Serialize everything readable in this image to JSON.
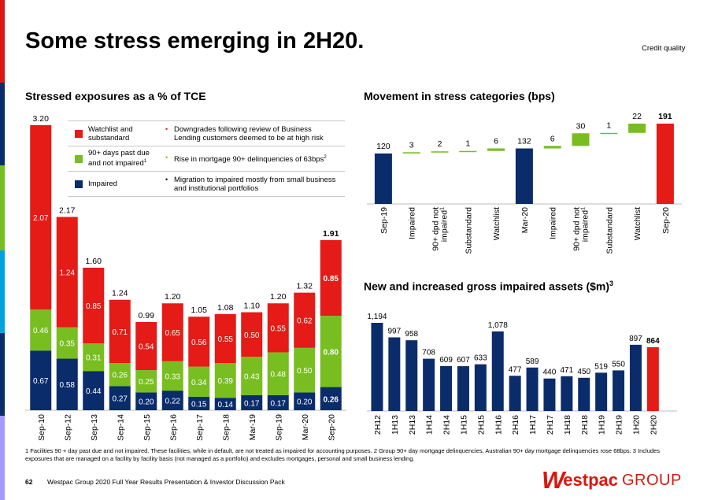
{
  "header": {
    "title": "Some stress emerging in 2H20.",
    "tag": "Credit quality"
  },
  "colors": {
    "red": "#e41b17",
    "green": "#78be20",
    "navy": "#0a2c6b",
    "edge": [
      "#da1710",
      "#0a2c6b",
      "#78be20",
      "#00a3e0",
      "#0a2c6b",
      "#a39aff"
    ]
  },
  "legend": [
    {
      "label_lines": [
        "Watchlist and",
        "substandard"
      ],
      "desc_lines": [
        "Downgrades following review of Business",
        "Lending customers deemed to be at high risk"
      ],
      "color": "#e41b17"
    },
    {
      "label_lines": [
        "90+ days past due",
        "and not impaired"
      ],
      "label_sup": "1",
      "desc_lines": [
        "Rise in mortgage 90+ delinquencies of 63bps"
      ],
      "desc_sup": "2",
      "color": "#78be20"
    },
    {
      "label_lines": [
        "Impaired"
      ],
      "desc_lines": [
        "Migration to impaired mostly from small business",
        "and institutional portfolios"
      ],
      "color": "#0a2c6b"
    }
  ],
  "chart_data": [
    {
      "type": "bar",
      "stacked": true,
      "title": "Stressed exposures as a % of TCE",
      "categories": [
        "Sep-10",
        "Sep-12",
        "Sep-13",
        "Sep-14",
        "Sep-15",
        "Sep-16",
        "Sep-17",
        "Sep-18",
        "Mar-19",
        "Sep-19",
        "Mar-20",
        "Sep-20"
      ],
      "series": [
        {
          "name": "Impaired",
          "color": "#0a2c6b",
          "values": [
            0.67,
            0.58,
            0.44,
            0.27,
            0.2,
            0.22,
            0.15,
            0.14,
            0.17,
            0.17,
            0.2,
            0.26
          ],
          "labels": [
            "0.67",
            "0.58",
            "0.44",
            "0.27",
            "0.20",
            "0.22",
            "0.15",
            "0.14",
            "0.17",
            "0.17",
            "0.20",
            "0.26"
          ]
        },
        {
          "name": "90+ days past due and not impaired",
          "color": "#78be20",
          "values": [
            0.46,
            0.35,
            0.31,
            0.26,
            0.25,
            0.33,
            0.34,
            0.39,
            0.43,
            0.48,
            0.5,
            0.8
          ],
          "labels": [
            "0.46",
            "0.35",
            "0.31",
            "0.26",
            "0.25",
            "0.33",
            "0.34",
            "0.39",
            "0.43",
            "0.48",
            "0.50",
            "0.80"
          ]
        },
        {
          "name": "Watchlist and substandard",
          "color": "#e41b17",
          "values": [
            2.07,
            1.24,
            0.85,
            0.71,
            0.54,
            0.65,
            0.56,
            0.55,
            0.5,
            0.55,
            0.62,
            0.85
          ],
          "labels": [
            "2.07",
            "1.24",
            "0.85",
            "0.71",
            "0.54",
            "0.65",
            "0.56",
            "0.55",
            "0.50",
            "0.55",
            "0.62",
            "0.85"
          ]
        }
      ],
      "totals": [
        "3.20",
        "2.17",
        "1.60",
        "1.24",
        "0.99",
        "1.20",
        "1.05",
        "1.08",
        "1.10",
        "1.20",
        "1.32",
        "1.91"
      ],
      "ylim": [
        0,
        3.35
      ],
      "highlight_last": true
    },
    {
      "type": "waterfall",
      "title": "Movement in stress categories (bps)",
      "categories": [
        "Sep-19",
        "Impaired",
        "90+ dpd not impaired",
        "Substandard",
        "Watchlist",
        "Mar-20",
        "Impaired",
        "90+ dpd not impaired",
        "Substandard",
        "Watchlist",
        "Sep-20"
      ],
      "category_sups": [
        "",
        "",
        "1",
        "",
        "",
        "",
        "",
        "1",
        "",
        "",
        ""
      ],
      "values": [
        120,
        3,
        2,
        1,
        6,
        132,
        6,
        30,
        1,
        22,
        191
      ],
      "kinds": [
        "total",
        "delta",
        "delta",
        "delta",
        "delta",
        "total",
        "delta",
        "delta",
        "delta",
        "delta",
        "total_final"
      ],
      "labels": [
        "120",
        "3",
        "2",
        "1",
        "6",
        "132",
        "6",
        "30",
        "1",
        "22",
        "191"
      ],
      "ylim": [
        0,
        200
      ]
    },
    {
      "type": "bar",
      "title": "New and increased gross impaired assets ($m)",
      "title_sup": "3",
      "categories": [
        "2H12",
        "1H13",
        "2H13",
        "1H14",
        "2H14",
        "1H15",
        "2H15",
        "1H16",
        "2H16",
        "1H17",
        "2H17",
        "1H18",
        "2H18",
        "1H19",
        "2H19",
        "1H20",
        "2H20"
      ],
      "values": [
        1194,
        997,
        958,
        708,
        609,
        607,
        633,
        1078,
        477,
        589,
        440,
        471,
        450,
        519,
        550,
        897,
        864
      ],
      "labels": [
        "1,194",
        "997",
        "958",
        "708",
        "609",
        "607",
        "633",
        "1,078",
        "477",
        "589",
        "440",
        "471",
        "450",
        "519",
        "550",
        "897",
        "864"
      ],
      "ylim": [
        0,
        1250
      ],
      "highlight_last": true
    }
  ],
  "footnote": "1 Facilities 90 + day past due and not impaired. These facilities, while in default, are not treated as impaired for accounting purposes. 2 Group 90+ day mortgage delinquencies, Australian 90+ day mortgage delinquencies rose 68bps. 3 Includes exposures that are managed on a facility by facility basis (not managed as a portfolio) and excludes mortgages, personal and small business lending.",
  "footer": {
    "page": "62",
    "text": "Westpac Group 2020 Full Year Results Presentation & Investor Discussion Pack",
    "logo_w": "W",
    "logo_rest": "estpac",
    "logo_group": "GROUP"
  }
}
